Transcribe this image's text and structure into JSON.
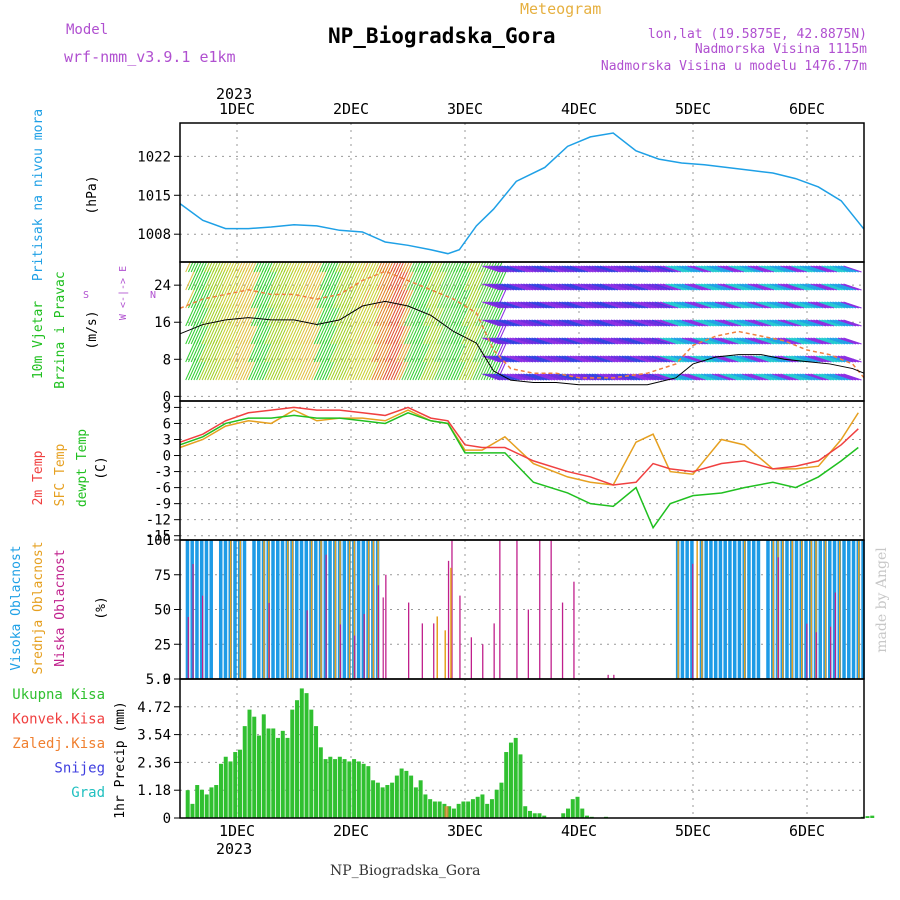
{
  "header": {
    "model_label": "Model",
    "model_name": "wrf-nmm_v3.9.1 e1km",
    "product": "Meteogram",
    "station": "NP_Biogradska_Gora",
    "coords": "lon,lat (19.5875E, 42.8875N)",
    "elevation": "Nadmorska Visina 1115m",
    "model_elevation": "Nadmorska Visina u modelu 1476.77m",
    "footer_station": "NP_Biogradska_Gora",
    "watermark": "made by Angel",
    "year": "2023"
  },
  "time_axis": {
    "labels": [
      "1DEC",
      "2DEC",
      "3DEC",
      "4DEC",
      "5DEC",
      "6DEC"
    ],
    "label_positions_day": [
      1,
      2,
      3,
      4,
      5,
      6
    ],
    "range_day": [
      0.5,
      6.5
    ]
  },
  "colors": {
    "pressure": "#1ea0e6",
    "temp2m": "#f04040",
    "sfc_temp": "#e6a020",
    "dewpt": "#20c020",
    "high_cloud": "#1e9be6",
    "mid_cloud": "#e6a020",
    "low_cloud": "#c0208c",
    "total_precip": "#30c030",
    "conv_precip": "#f04040",
    "frz_precip": "#f08030",
    "snow": "#4040e0",
    "grad": "#20c0c0",
    "label_purple": "#b050d0"
  },
  "panels": {
    "pressure": {
      "ylabel": "Pritisak na nivou mora",
      "unit": "(hPa)",
      "ticks": [
        "1008",
        "1015",
        "1022"
      ]
    },
    "wind": {
      "ylabel1": "10m Vjetar",
      "ylabel2": "Brzina i Pravac",
      "unit": "(m/s)",
      "ticks": [
        "0",
        "8",
        "16",
        "24"
      ],
      "compass": "W <-|-> E",
      "compass_n": "N",
      "compass_s": "S"
    },
    "temp": {
      "ylabel1": "2m Temp",
      "ylabel2": "SFC Temp",
      "ylabel3": "dewpt Temp",
      "unit": "(C)",
      "ticks": [
        "-15",
        "-12",
        "-9",
        "-6",
        "-3",
        "0",
        "3",
        "6",
        "9"
      ]
    },
    "cloud": {
      "ylabel1": "Visoka Oblacnost",
      "ylabel2": "Srednja Oblacnost",
      "ylabel3": "Niska Oblacnost",
      "unit": "(%)",
      "ticks": [
        "0",
        "25",
        "50",
        "75",
        "100"
      ]
    },
    "precip": {
      "ylabel": "1hr Precip (mm)",
      "ticks": [
        "0",
        "1.18",
        "2.36",
        "3.54",
        "4.72",
        "5.9"
      ],
      "legend": [
        "Ukupna Kisa",
        "Konvek.Kisa",
        "Zaledj.Kisa",
        "Snijeg",
        "Grad"
      ]
    }
  },
  "chart_data": {
    "type": "line",
    "title": "NP_Biogradska_Gora",
    "x_unit": "day of December 2023",
    "pressure": {
      "name": "Pritisak na nivou mora",
      "ylim": [
        1003,
        1028
      ],
      "x": [
        0.5,
        0.7,
        0.9,
        1.1,
        1.3,
        1.5,
        1.7,
        1.9,
        2.1,
        2.3,
        2.5,
        2.7,
        2.85,
        2.95,
        3.1,
        3.25,
        3.45,
        3.7,
        3.9,
        4.1,
        4.3,
        4.5,
        4.7,
        4.9,
        5.1,
        5.3,
        5.5,
        5.7,
        5.9,
        6.1,
        6.3,
        6.5
      ],
      "y": [
        1013.5,
        1010.5,
        1009.0,
        1009.0,
        1009.3,
        1009.7,
        1009.5,
        1008.7,
        1008.4,
        1006.6,
        1006.0,
        1005.2,
        1004.5,
        1005.2,
        1009.5,
        1012.5,
        1017.5,
        1020.0,
        1023.8,
        1025.5,
        1026.2,
        1023.0,
        1021.5,
        1020.8,
        1020.5,
        1020.0,
        1019.5,
        1019.0,
        1018.0,
        1016.5,
        1014.0,
        1008.9
      ]
    },
    "wind": {
      "name": "10m wind speed",
      "ylim": [
        -1,
        29
      ],
      "x": [
        0.5,
        0.7,
        0.9,
        1.1,
        1.3,
        1.5,
        1.7,
        1.9,
        2.1,
        2.3,
        2.5,
        2.7,
        2.9,
        3.1,
        3.25,
        3.4,
        3.6,
        3.8,
        4.0,
        4.3,
        4.6,
        4.85,
        5.0,
        5.2,
        5.4,
        5.6,
        5.8,
        6.0,
        6.2,
        6.4,
        6.5
      ],
      "speed": [
        13.5,
        15.5,
        16.5,
        17.0,
        16.5,
        16.5,
        15.5,
        16.5,
        19.5,
        20.5,
        19.5,
        17.5,
        14.0,
        11.5,
        5.5,
        3.5,
        3.0,
        3.0,
        2.5,
        2.5,
        2.5,
        4.0,
        7.0,
        8.5,
        9.0,
        9.0,
        8.0,
        7.5,
        7.0,
        6.0,
        5.0
      ],
      "gust": [
        19,
        21,
        22,
        23,
        22,
        22,
        21,
        22,
        25,
        27,
        25,
        23,
        21,
        18,
        10,
        6,
        5,
        5,
        4,
        4,
        5,
        7,
        11,
        13,
        14,
        13,
        12,
        10,
        9,
        7,
        4
      ]
    },
    "temperature": {
      "ylim": [
        -15,
        10
      ],
      "x": [
        0.5,
        0.7,
        0.9,
        1.1,
        1.3,
        1.5,
        1.7,
        1.9,
        2.1,
        2.3,
        2.5,
        2.7,
        2.85,
        3.0,
        3.15,
        3.35,
        3.6,
        3.9,
        4.1,
        4.3,
        4.5,
        4.65,
        4.8,
        5.0,
        5.25,
        5.45,
        5.7,
        5.9,
        6.1,
        6.3,
        6.45
      ],
      "series": [
        {
          "name": "2m Temp",
          "values": [
            2.5,
            4.0,
            6.5,
            8.0,
            8.5,
            9.0,
            8.5,
            8.5,
            8.0,
            7.5,
            9.0,
            7.0,
            6.5,
            2.0,
            1.5,
            1.5,
            -1.0,
            -3.0,
            -4.0,
            -5.5,
            -5.0,
            -1.5,
            -2.5,
            -3.0,
            -1.5,
            -1.0,
            -2.5,
            -2.0,
            -1.0,
            2.0,
            5.0
          ]
        },
        {
          "name": "SFC Temp",
          "values": [
            1.5,
            3.0,
            5.5,
            6.5,
            6.0,
            8.5,
            6.5,
            7.0,
            7.0,
            6.5,
            8.5,
            6.5,
            6.0,
            1.0,
            1.0,
            3.5,
            -1.5,
            -4.0,
            -5.0,
            -5.5,
            2.5,
            4.0,
            -3.0,
            -3.5,
            3.0,
            2.0,
            -2.5,
            -2.5,
            -2.0,
            3.0,
            8.0
          ]
        },
        {
          "name": "dewpt Temp",
          "values": [
            2.0,
            3.5,
            6.0,
            7.0,
            7.0,
            7.5,
            7.0,
            7.0,
            6.5,
            6.0,
            8.0,
            6.5,
            6.0,
            0.5,
            0.5,
            0.5,
            -5.0,
            -7.0,
            -9.0,
            -9.5,
            -6.0,
            -13.5,
            -9.0,
            -7.5,
            -7.0,
            -6.0,
            -5.0,
            -6.0,
            -4.0,
            -1.0,
            1.5
          ]
        }
      ]
    },
    "cloud_cover": {
      "ylim": [
        0,
        100
      ],
      "x_ranges_full_cover": [
        [
          0.55,
          2.3
        ],
        [
          4.85,
          6.5
        ]
      ],
      "series": [
        {
          "name": "Visoka Oblacnost",
          "note": "near 100% during 0.55-2.3 and 4.85-6.5"
        },
        {
          "name": "Srednja Oblacnost",
          "note": "scattered bars up to 100% on 2.7-2.9"
        },
        {
          "name": "Niska Oblacnost",
          "note": "scattered bars on 2.3-4.0"
        }
      ]
    },
    "precipitation": {
      "ylim": [
        0,
        5.9
      ],
      "bar_width_hours": 1,
      "x_start": 0.55,
      "x_step": 0.0417,
      "series": [
        {
          "name": "Ukupna Kisa",
          "values": [
            1.18,
            0.6,
            1.4,
            1.2,
            1.0,
            1.3,
            1.4,
            2.3,
            2.6,
            2.4,
            2.8,
            2.9,
            3.9,
            4.6,
            4.3,
            3.5,
            4.4,
            3.8,
            3.8,
            3.4,
            3.7,
            3.4,
            4.6,
            5.0,
            5.5,
            5.3,
            4.6,
            3.9,
            3.0,
            2.5,
            2.6,
            2.5,
            2.6,
            2.5,
            2.4,
            2.5,
            2.4,
            2.3,
            2.2,
            1.6,
            1.5,
            1.3,
            1.4,
            1.5,
            1.8,
            2.1,
            2.0,
            1.8,
            1.3,
            1.6,
            1.0,
            0.8,
            0.7,
            0.7,
            0.6,
            0.5,
            0.4,
            0.6,
            0.7,
            0.7,
            0.8,
            0.9,
            1.0,
            0.6,
            0.8,
            1.2,
            1.5,
            2.8,
            3.2,
            3.4,
            2.7,
            0.5,
            0.3,
            0.2,
            0.2,
            0.1,
            0,
            0,
            0,
            0.2,
            0.4,
            0.8,
            0.9,
            0.4,
            0.1,
            0.05,
            0,
            0,
            0.05,
            0,
            0,
            0,
            0,
            0,
            0,
            0,
            0,
            0,
            0,
            0,
            0,
            0,
            0,
            0,
            0,
            0,
            0,
            0,
            0,
            0,
            0,
            0,
            0,
            0,
            0,
            0,
            0,
            0,
            0,
            0,
            0,
            0,
            0,
            0,
            0,
            0,
            0,
            0,
            0,
            0,
            0,
            0,
            0,
            0,
            0,
            0,
            0,
            0,
            0,
            0,
            0,
            0,
            0.05,
            0.08,
            0.1,
            0,
            0
          ]
        },
        {
          "name": "Konvek.Kisa",
          "values": []
        },
        {
          "name": "Zaledj.Kisa",
          "values": []
        },
        {
          "name": "Snijeg",
          "values": []
        },
        {
          "name": "Grad",
          "values": []
        }
      ]
    }
  }
}
